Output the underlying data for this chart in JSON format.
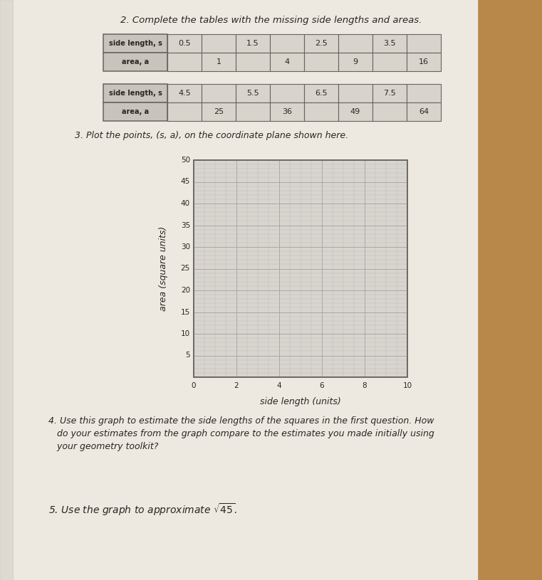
{
  "title": "2. Complete the tables with the missing side lengths and areas.",
  "table1": {
    "row1_label": "side length, s",
    "row2_label": "area, a",
    "row1_values": [
      "0.5",
      "",
      "1.5",
      "",
      "2.5",
      "",
      "3.5",
      ""
    ],
    "row2_values": [
      "",
      "1",
      "",
      "4",
      "",
      "9",
      "",
      "16"
    ]
  },
  "table2": {
    "row1_label": "side length, s",
    "row2_label": "area, a",
    "row1_values": [
      "4.5",
      "",
      "5.5",
      "",
      "6.5",
      "",
      "7.5",
      ""
    ],
    "row2_values": [
      "",
      "25",
      "",
      "36",
      "",
      "49",
      "",
      "64"
    ]
  },
  "plot_title": "3. Plot the points, (s, a), on the coordinate plane shown here.",
  "xlabel": "side length (units)",
  "ylabel": "area (square units)",
  "xmin": 0,
  "xmax": 10,
  "ymin": 0,
  "ymax": 50,
  "yticks": [
    5,
    10,
    15,
    20,
    25,
    30,
    35,
    40,
    45,
    50
  ],
  "xticks": [
    0,
    2,
    4,
    6,
    8,
    10
  ],
  "question4_line1": "4. Use this graph to estimate the side lengths of the squares in the first question. How",
  "question4_line2": "   do your estimates from the graph compare to the estimates you made initially using",
  "question4_line3": "   your geometry toolkit?",
  "question5": "5. Use the graph to approximate ",
  "paper_color": "#ede9e1",
  "wood_color": "#b8874a",
  "table_label_bg": "#c8c4bc",
  "table_cell_bg": "#d8d4cc",
  "graph_bg": "#d8d4ce",
  "grid_minor_color": "#c0bcb8",
  "grid_major_color": "#aaa8a4",
  "text_color": "#2a2520",
  "border_color": "#666460"
}
